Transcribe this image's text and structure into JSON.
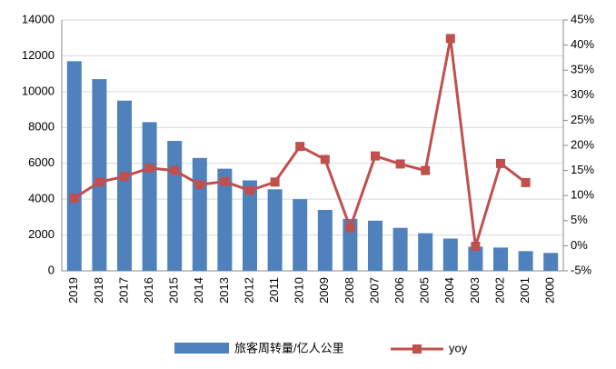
{
  "chart_data": {
    "type": "bar_line",
    "categories": [
      "2019",
      "2018",
      "2017",
      "2016",
      "2015",
      "2014",
      "2013",
      "2012",
      "2011",
      "2010",
      "2009",
      "2008",
      "2007",
      "2006",
      "2005",
      "2004",
      "2003",
      "2002",
      "2001",
      "2000"
    ],
    "series": [
      {
        "name": "旅客周转量/亿人公里",
        "color": "#4f81bd",
        "type": "bar",
        "values": [
          11700,
          10700,
          9500,
          8300,
          7250,
          6300,
          5700,
          5050,
          4550,
          4000,
          3400,
          2900,
          2800,
          2400,
          2100,
          1800,
          1350,
          1300,
          1100,
          1000
        ]
      },
      {
        "name": "yoy",
        "color": "#c0504d",
        "type": "line",
        "axis": "y2",
        "values": [
          9.5,
          12.7,
          13.8,
          15.5,
          15.0,
          12.2,
          12.8,
          11.0,
          12.7,
          19.8,
          17.2,
          3.6,
          17.9,
          16.3,
          15.0,
          41.3,
          -0.1,
          16.4,
          12.6,
          null
        ]
      }
    ],
    "ylim": [
      0,
      14000
    ],
    "yticks": [
      0,
      2000,
      4000,
      6000,
      8000,
      10000,
      12000,
      14000
    ],
    "y2lim": [
      -5,
      45
    ],
    "y2ticks": [
      {
        "value": -5,
        "label": "-5%"
      },
      {
        "value": 0,
        "label": "0%"
      },
      {
        "value": 5,
        "label": "5%"
      },
      {
        "value": 10,
        "label": "10%"
      },
      {
        "value": 15,
        "label": "15%"
      },
      {
        "value": 20,
        "label": "20%"
      },
      {
        "value": 25,
        "label": "25%"
      },
      {
        "value": 30,
        "label": "30%"
      },
      {
        "value": 35,
        "label": "35%"
      },
      {
        "value": 40,
        "label": "40%"
      },
      {
        "value": 45,
        "label": "45%"
      }
    ],
    "grid": true
  }
}
